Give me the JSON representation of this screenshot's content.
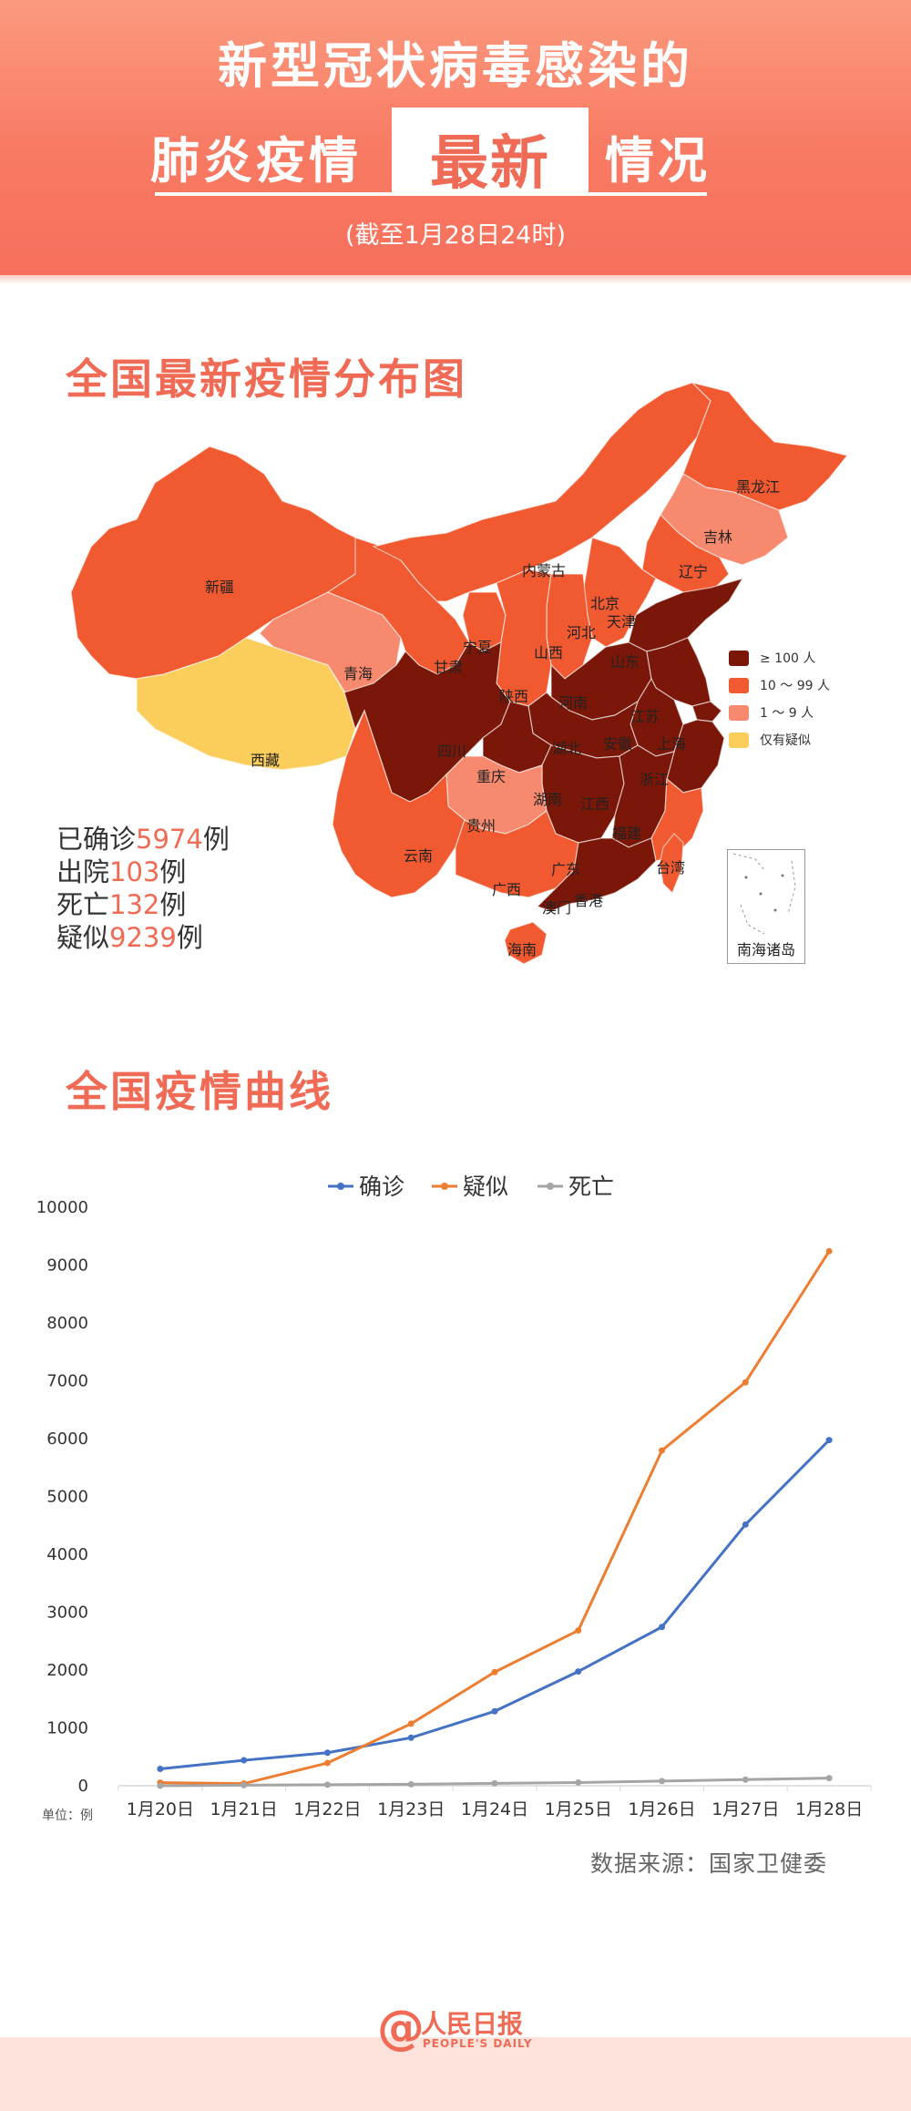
{
  "header": {
    "title_line1": "新型冠状病毒感染的",
    "title_line2_left": "肺炎疫情",
    "title_highlight": "最新",
    "title_line2_right": "情况",
    "subtitle": "(截至1月28日24时)"
  },
  "map_section": {
    "title": "全国最新疫情分布图",
    "colors": {
      "gte100": "#7a1708",
      "10to99": "#f15a30",
      "1to9": "#f78a6e",
      "suspected": "#fbce5b"
    },
    "legend": [
      {
        "key": "gte100",
        "label": "≥ 100 人"
      },
      {
        "key": "10to99",
        "label": "10 ～ 99 人"
      },
      {
        "key": "1to9",
        "label": "1 ～ 9 人"
      },
      {
        "key": "suspected",
        "label": "仅有疑似"
      }
    ],
    "provinces": {
      "heilongjiang": "黑龙江",
      "jilin": "吉林",
      "liaoning": "辽宁",
      "neimenggu": "内蒙古",
      "beijing": "北京",
      "tianjin": "天津",
      "hebei": "河北",
      "shanxi": "山西",
      "shandong": "山东",
      "ningxia": "宁夏",
      "gansu": "甘肃",
      "qinghai": "青海",
      "xinjiang": "新疆",
      "xizang": "西藏",
      "shaanxi": "陕西",
      "henan": "河南",
      "jiangsu": "江苏",
      "anhui": "安徽",
      "shanghai": "上海",
      "hubei": "湖北",
      "sichuan": "四川",
      "chongqing": "重庆",
      "zhejiang": "浙江",
      "hunan": "湖南",
      "jiangxi": "江西",
      "guizhou": "贵州",
      "yunnan": "云南",
      "fujian": "福建",
      "guangxi": "广西",
      "guangdong": "广东",
      "taiwan": "台湾",
      "xianggang": "香港",
      "aomen": "澳门",
      "hainan": "海南"
    },
    "nanhai_label": "南海诸岛",
    "stats": [
      {
        "prefix": "已确诊",
        "value": "5974",
        "suffix": "例"
      },
      {
        "prefix": "出院",
        "value": "103",
        "suffix": "例"
      },
      {
        "prefix": "死亡",
        "value": "132",
        "suffix": "例"
      },
      {
        "prefix": "疑似",
        "value": "9239",
        "suffix": "例"
      }
    ]
  },
  "chart_section": {
    "title": "全国疫情曲线"
  },
  "chart_data": {
    "type": "line",
    "x": [
      "1月20日",
      "1月21日",
      "1月22日",
      "1月23日",
      "1月24日",
      "1月25日",
      "1月26日",
      "1月27日",
      "1月28日"
    ],
    "series": [
      {
        "name": "确诊",
        "color": "#4472c4",
        "values": [
          291,
          440,
          571,
          830,
          1287,
          1975,
          2744,
          4515,
          5974
        ]
      },
      {
        "name": "疑似",
        "color": "#ed7d31",
        "values": [
          54,
          37,
          393,
          1072,
          1965,
          2684,
          5794,
          6973,
          9239
        ]
      },
      {
        "name": "死亡",
        "color": "#a5a5a5",
        "values": [
          0,
          9,
          17,
          25,
          41,
          56,
          80,
          106,
          132
        ]
      }
    ],
    "ylim": [
      0,
      10000
    ],
    "yticks": [
      0,
      1000,
      2000,
      3000,
      4000,
      5000,
      6000,
      7000,
      8000,
      9000,
      10000
    ],
    "unit_label": "单位：例",
    "legend_position": "top",
    "grid": false
  },
  "source": "数据来源：国家卫健委",
  "footer": {
    "logo_text": "人民日报",
    "logo_sub": "PEOPLE'S DAILY"
  }
}
